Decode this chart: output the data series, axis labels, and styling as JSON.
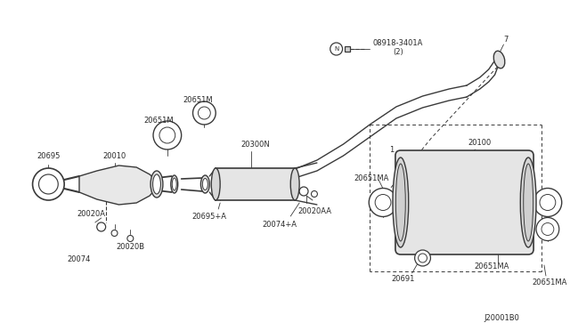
{
  "bg_color": "#ffffff",
  "line_color": "#3a3a3a",
  "text_color": "#2a2a2a",
  "diagram_id": "J20001B0",
  "figsize": [
    6.4,
    3.72
  ],
  "dpi": 100,
  "xlim": [
    0,
    640
  ],
  "ylim": [
    0,
    372
  ]
}
